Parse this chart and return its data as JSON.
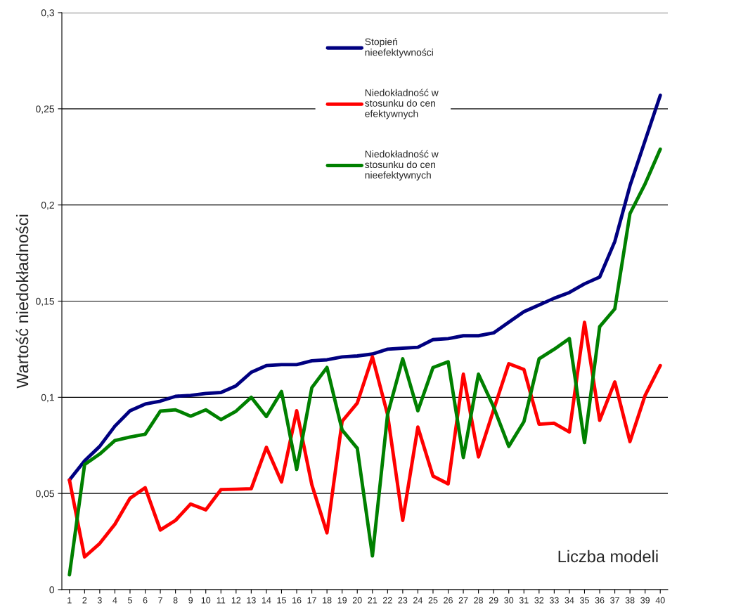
{
  "chart_data": {
    "type": "line",
    "xlabel": "Liczba modeli",
    "ylabel": "Wartość niedokładności",
    "categories": [
      "1",
      "2",
      "3",
      "4",
      "5",
      "6",
      "7",
      "8",
      "9",
      "10",
      "11",
      "12",
      "13",
      "14",
      "15",
      "16",
      "17",
      "18",
      "19",
      "20",
      "21",
      "22",
      "23",
      "24",
      "25",
      "26",
      "27",
      "28",
      "29",
      "30",
      "31",
      "32",
      "33",
      "34",
      "35",
      "36",
      "37",
      "38",
      "39",
      "40"
    ],
    "series": [
      {
        "name": "Stopień\nnieefektywności",
        "color": "#000080",
        "values": [
          0.057,
          0.067,
          0.0745,
          0.085,
          0.093,
          0.0965,
          0.098,
          0.1005,
          0.101,
          0.102,
          0.1025,
          0.106,
          0.113,
          0.1165,
          0.117,
          0.117,
          0.119,
          0.1195,
          0.121,
          0.1215,
          0.1225,
          0.125,
          0.1255,
          0.126,
          0.13,
          0.1305,
          0.132,
          0.132,
          0.1335,
          0.139,
          0.1445,
          0.148,
          0.1515,
          0.1545,
          0.159,
          0.1625,
          0.181,
          0.21,
          0.2335,
          0.257
        ]
      },
      {
        "name": "Niedokładność w\nstosunku do cen\nefektywnych",
        "color": "#ff0000",
        "values": [
          0.057,
          0.017,
          0.024,
          0.034,
          0.0475,
          0.053,
          0.031,
          0.036,
          0.0445,
          0.0415,
          0.052,
          0.0522,
          0.0525,
          0.074,
          0.056,
          0.093,
          0.0545,
          0.0295,
          0.0875,
          0.097,
          0.121,
          0.091,
          0.036,
          0.0845,
          0.059,
          0.055,
          0.112,
          0.069,
          0.0935,
          0.1175,
          0.1145,
          0.086,
          0.0865,
          0.082,
          0.139,
          0.088,
          0.108,
          0.077,
          0.101,
          0.1165
        ]
      },
      {
        "name": "Niedokładność w\nstosunku do cen\nnieefektywnych",
        "color": "#008000",
        "values": [
          0.0077,
          0.065,
          0.0705,
          0.0775,
          0.0793,
          0.0808,
          0.0928,
          0.0935,
          0.0902,
          0.0935,
          0.0884,
          0.0928,
          0.1,
          0.09,
          0.103,
          0.0625,
          0.105,
          0.1155,
          0.083,
          0.0735,
          0.0175,
          0.091,
          0.12,
          0.093,
          0.1155,
          0.1185,
          0.0687,
          0.112,
          0.095,
          0.0745,
          0.0873,
          0.12,
          0.125,
          0.1305,
          0.0764,
          0.1367,
          0.146,
          0.1955,
          0.211,
          0.229
        ]
      }
    ],
    "ylim": [
      0,
      0.3
    ],
    "yticks": [
      0,
      {
        "value": 0.05,
        "label": "0,05"
      },
      {
        "value": 0.1,
        "label": "0,1"
      },
      {
        "value": 0.15,
        "label": "0,15"
      },
      {
        "value": 0.2,
        "label": "0,2"
      },
      {
        "value": 0.25,
        "label": "0,25"
      },
      {
        "value": 0.3,
        "label": "0,3"
      }
    ],
    "grid": "y",
    "legend": "top",
    "marker": "none",
    "line_style": "solid"
  }
}
